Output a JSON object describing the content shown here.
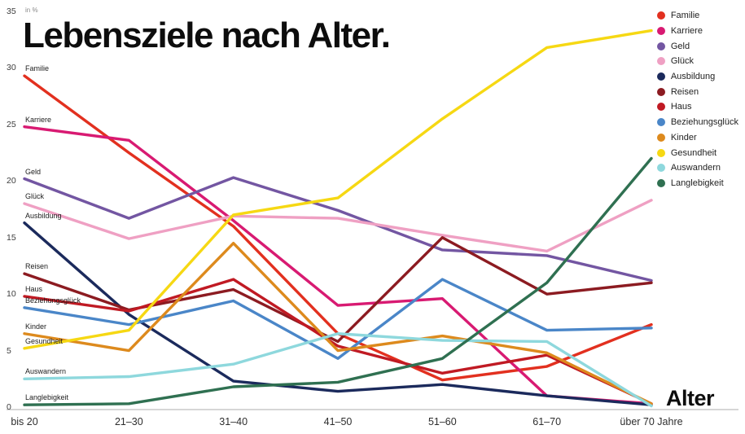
{
  "title": "Lebensziele nach Alter.",
  "y_axis": {
    "unit_label": "in %",
    "ticks": [
      35,
      30,
      25,
      20,
      15,
      10,
      5,
      0
    ]
  },
  "x_axis": {
    "label": "Alter",
    "categories": [
      "bis 20",
      "21–30",
      "31–40",
      "41–50",
      "51–60",
      "61–70",
      "über 70 Jahre"
    ]
  },
  "chart_data": {
    "type": "line",
    "title": "Lebensziele nach Alter.",
    "xlabel": "Alter",
    "ylabel": "in %",
    "ylim": [
      0,
      35
    ],
    "grid": false,
    "legend_position": "top-right",
    "categories": [
      "bis 20",
      "21–30",
      "31–40",
      "41–50",
      "51–60",
      "61–70",
      "über 70 Jahre"
    ],
    "series": [
      {
        "name": "Familie",
        "color": "#e2301f",
        "values": [
          29.3,
          22.5,
          16.0,
          6.5,
          2.4,
          3.6,
          7.3
        ]
      },
      {
        "name": "Karriere",
        "color": "#d81a72",
        "values": [
          24.8,
          23.6,
          16.5,
          9.0,
          9.6,
          1.0,
          0.3
        ]
      },
      {
        "name": "Geld",
        "color": "#7356a2",
        "values": [
          20.2,
          16.7,
          20.3,
          17.4,
          13.9,
          13.4,
          11.2
        ]
      },
      {
        "name": "Glück",
        "color": "#efa0c3",
        "values": [
          18.0,
          14.9,
          16.9,
          16.7,
          15.2,
          13.8,
          18.3
        ]
      },
      {
        "name": "Ausbildung",
        "color": "#1b2a5c",
        "values": [
          16.3,
          8.2,
          2.3,
          1.4,
          2.0,
          1.0,
          0.2
        ]
      },
      {
        "name": "Reisen",
        "color": "#8c1b21",
        "values": [
          11.8,
          8.6,
          10.4,
          5.8,
          15.0,
          10.0,
          11.0
        ]
      },
      {
        "name": "Haus",
        "color": "#c01a23",
        "values": [
          9.8,
          8.5,
          11.3,
          5.4,
          3.0,
          4.6,
          0.3
        ]
      },
      {
        "name": "Beziehungsglück",
        "color": "#4a86c8",
        "values": [
          8.8,
          7.3,
          9.4,
          4.3,
          11.3,
          6.8,
          7.0
        ]
      },
      {
        "name": "Kinder",
        "color": "#dd8a1d",
        "values": [
          6.5,
          5.0,
          14.5,
          5.0,
          6.3,
          4.8,
          0.3
        ]
      },
      {
        "name": "Gesundheit",
        "color": "#f6d813",
        "values": [
          5.2,
          6.8,
          17.0,
          18.5,
          25.5,
          31.8,
          33.3
        ]
      },
      {
        "name": "Auswandern",
        "color": "#8ed8dd",
        "values": [
          2.5,
          2.7,
          3.8,
          6.5,
          5.9,
          5.8,
          0.1
        ]
      },
      {
        "name": "Langlebigkeit",
        "color": "#2f7051",
        "values": [
          0.2,
          0.3,
          1.8,
          2.2,
          4.3,
          11.0,
          22.0
        ]
      }
    ]
  }
}
